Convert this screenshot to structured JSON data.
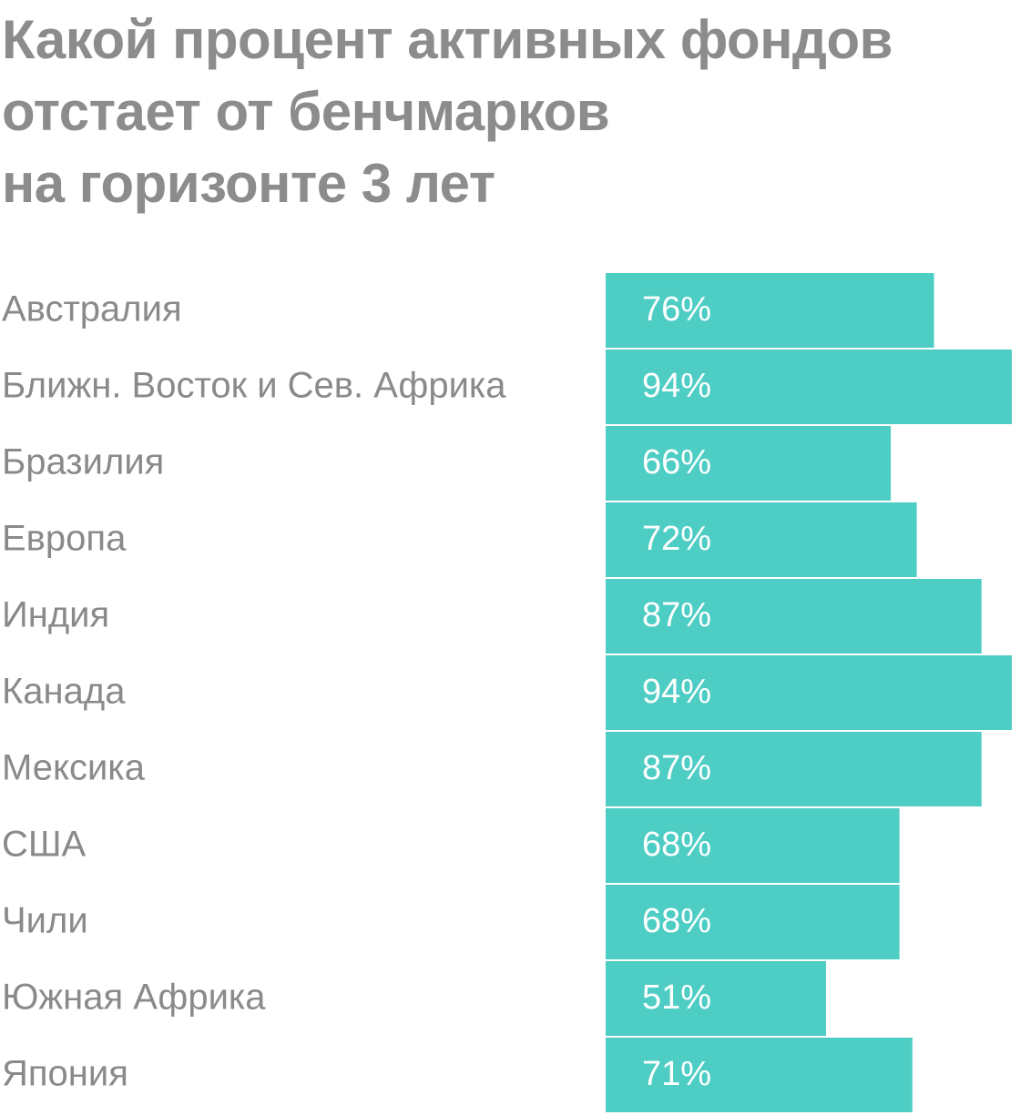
{
  "chart_data": {
    "type": "bar",
    "orientation": "horizontal",
    "title": "Какой процент активных фондов\nотстает от бенчмарков\nна горизонте 3 лет",
    "categories": [
      "Австралия",
      "Ближн. Восток и Сев. Африка",
      "Бразилия",
      "Европа",
      "Индия",
      "Канада",
      "Мексика",
      "США",
      "Чили",
      "Южная Африка",
      "Япония"
    ],
    "values": [
      76,
      94,
      66,
      72,
      87,
      94,
      87,
      68,
      68,
      51,
      71
    ],
    "value_labels": [
      "76%",
      "94%",
      "66%",
      "72%",
      "87%",
      "94%",
      "87%",
      "68%",
      "68%",
      "51%",
      "71%"
    ],
    "color": "#4ecdc4"
  }
}
